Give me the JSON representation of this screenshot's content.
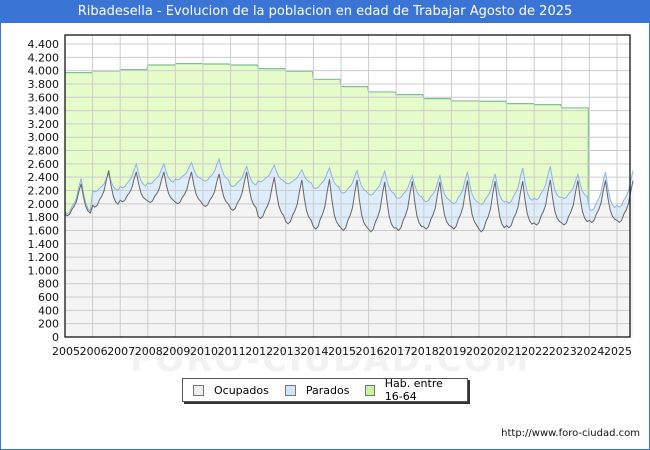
{
  "header": {
    "title": "Ribadesella - Evolucion de la poblacion en edad de Trabajar Agosto de 2025"
  },
  "watermark": "FORO-CIUDAD.COM",
  "footer": {
    "url": "http://www.foro-ciudad.com"
  },
  "legend": [
    {
      "label": "Ocupados",
      "color": "#eeeeee"
    },
    {
      "label": "Parados",
      "color": "#cfe5fb"
    },
    {
      "label": "Hab. entre 16-64",
      "color": "#c6f5a0"
    }
  ],
  "colors": {
    "title_bg": "#3a74d4",
    "hab_fill": "#e6fccb",
    "hab_line": "#7fbf94",
    "parados_fill": "#deedfc",
    "parados_line": "#8fb3e6",
    "ocupados_fill": "#f4f4f4",
    "ocupados_line": "#666666",
    "grid": "#cccccc"
  },
  "chart_data": {
    "type": "area",
    "title": "Ribadesella - Evolucion de la poblacion en edad de Trabajar Agosto de 2025",
    "xlabel": "",
    "ylabel": "",
    "ylim": [
      0,
      4400
    ],
    "yticks": [
      0,
      200,
      400,
      600,
      800,
      1000,
      1200,
      1400,
      1600,
      1800,
      2000,
      2200,
      2400,
      2600,
      2800,
      3000,
      3200,
      3400,
      3600,
      3800,
      4000,
      4200,
      4400
    ],
    "ytick_labels": [
      "0",
      "200",
      "400",
      "600",
      "800",
      "1.000",
      "1.200",
      "1.400",
      "1.600",
      "1.800",
      "2.000",
      "2.200",
      "2.400",
      "2.600",
      "2.800",
      "3.000",
      "3.200",
      "3.400",
      "3.600",
      "3.800",
      "4.000",
      "4.200",
      "4.400"
    ],
    "xticks": [
      "2005",
      "2006",
      "2007",
      "2008",
      "2009",
      "2010",
      "2011",
      "2012",
      "2013",
      "2014",
      "2015",
      "2016",
      "2017",
      "2018",
      "2019",
      "2020",
      "2021",
      "2022",
      "2023",
      "2024",
      "2025"
    ],
    "grid": true,
    "legend_position": "bottom",
    "series": [
      {
        "name": "Hab. entre 16-64",
        "note": "annual values (constant per year), drops off after 2023",
        "x": [
          2005,
          2006,
          2007,
          2008,
          2009,
          2010,
          2011,
          2012,
          2013,
          2014,
          2015,
          2016,
          2017,
          2018,
          2019,
          2020,
          2021,
          2022,
          2023
        ],
        "values": [
          3970,
          3995,
          4015,
          4085,
          4105,
          4100,
          4085,
          4030,
          3990,
          3870,
          3760,
          3680,
          3640,
          3580,
          3545,
          3540,
          3505,
          3490,
          3440
        ]
      },
      {
        "name": "Parados",
        "note": "stacked top = Ocupados + Parados; annual summer peak / winter trough (approx)",
        "x": [
          2005,
          2006,
          2007,
          2008,
          2009,
          2010,
          2011,
          2012,
          2013,
          2014,
          2015,
          2016,
          2017,
          2018,
          2019,
          2020,
          2021,
          2022,
          2023,
          2024,
          2025
        ],
        "peak_total": [
          2380,
          2450,
          2600,
          2600,
          2620,
          2670,
          2560,
          2580,
          2510,
          2540,
          2500,
          2490,
          2420,
          2420,
          2480,
          2450,
          2540,
          2560,
          2440,
          2480,
          2500
        ],
        "trough_total": [
          1850,
          2180,
          2240,
          2300,
          2360,
          2340,
          2260,
          2330,
          2300,
          2230,
          2160,
          2130,
          2080,
          2030,
          2000,
          1990,
          2010,
          2060,
          2080,
          1900,
          1950
        ]
      },
      {
        "name": "Ocupados",
        "note": "annual summer peak / winter trough (approx)",
        "x": [
          2005,
          2006,
          2007,
          2008,
          2009,
          2010,
          2011,
          2012,
          2013,
          2014,
          2015,
          2016,
          2017,
          2018,
          2019,
          2020,
          2021,
          2022,
          2023,
          2024,
          2025
        ],
        "peak": [
          2300,
          2500,
          2480,
          2480,
          2480,
          2450,
          2480,
          2400,
          2360,
          2370,
          2360,
          2330,
          2340,
          2330,
          2350,
          2340,
          2340,
          2360,
          2350,
          2350,
          2350
        ],
        "trough": [
          1820,
          1950,
          2030,
          2020,
          2000,
          1960,
          1900,
          1780,
          1700,
          1620,
          1600,
          1580,
          1600,
          1620,
          1620,
          1580,
          1640,
          1680,
          1680,
          1720,
          1720
        ]
      }
    ]
  }
}
